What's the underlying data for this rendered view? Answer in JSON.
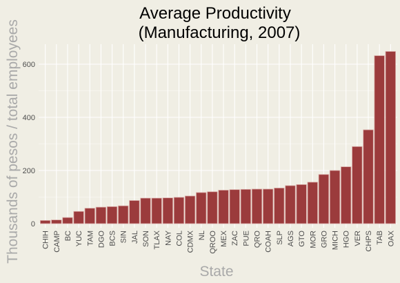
{
  "chart_data": {
    "type": "bar",
    "title_lines": [
      "Average Productivity",
      "(Manufacturing, 2007)"
    ],
    "xlabel": "State",
    "ylabel": "Thousands of pesos / total employees",
    "ylim": [
      0,
      670
    ],
    "y_ticks": [
      0,
      200,
      400,
      600
    ],
    "grid": true,
    "colors": {
      "bar": "#9b3b3c",
      "bar_outline": "#d9aaa6",
      "background": "#f0eee4",
      "grid": "#ffffff"
    },
    "categories": [
      "CHIH",
      "CAMP",
      "BC",
      "YUC",
      "TAM",
      "DGO",
      "BCS",
      "SIN",
      "JAL",
      "SON",
      "TLAX",
      "NAY",
      "COL",
      "CDMX",
      "NL",
      "QROO",
      "MEX",
      "ZAC",
      "PUE",
      "QRO",
      "COAH",
      "SLP",
      "AGS",
      "GTO",
      "MOR",
      "GRO",
      "MICH",
      "HGO",
      "VER",
      "CHPS",
      "TAB",
      "OAX"
    ],
    "values": [
      12,
      14,
      23,
      46,
      58,
      62,
      64,
      67,
      87,
      96,
      96,
      97,
      99,
      104,
      117,
      120,
      126,
      128,
      129,
      130,
      130,
      134,
      143,
      147,
      156,
      185,
      200,
      214,
      290,
      353,
      632,
      648
    ]
  }
}
